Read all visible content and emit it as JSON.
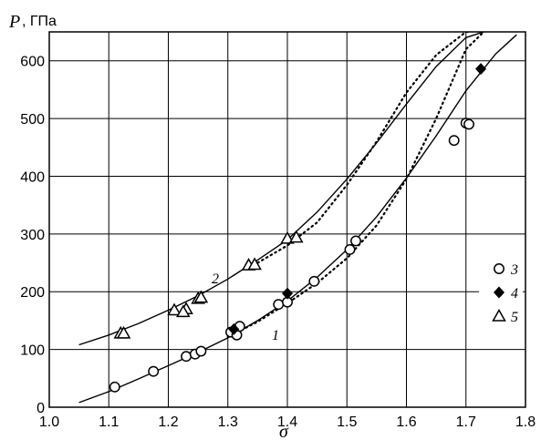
{
  "chart_data": {
    "type": "scatter",
    "xlabel": "σ",
    "ylabel": "P",
    "yunit": ", ГПа",
    "xlim": [
      1.0,
      1.8
    ],
    "ylim": [
      0,
      650
    ],
    "xticks": [
      "1.0",
      "1.1",
      "1.2",
      "1.3",
      "1.4",
      "1.5",
      "1.6",
      "1.7",
      "1.8"
    ],
    "yticks": [
      "0",
      "100",
      "200",
      "300",
      "400",
      "500",
      "600"
    ],
    "grid": true,
    "legend_position": "right",
    "curves": [
      {
        "label": "1",
        "style": "solid",
        "x": [
          1.05,
          1.1,
          1.15,
          1.2,
          1.25,
          1.3,
          1.35,
          1.4,
          1.45,
          1.5,
          1.55,
          1.6,
          1.65,
          1.7,
          1.75,
          1.785
        ],
        "y": [
          8,
          27,
          49,
          72,
          95,
          120,
          150,
          184,
          225,
          273,
          330,
          397,
          470,
          548,
          612,
          645
        ]
      },
      {
        "label": "2",
        "style": "solid",
        "x": [
          1.05,
          1.1,
          1.15,
          1.2,
          1.25,
          1.3,
          1.35,
          1.4,
          1.45,
          1.5,
          1.55,
          1.6,
          1.65,
          1.7,
          1.73
        ],
        "y": [
          108,
          125,
          145,
          168,
          193,
          222,
          255,
          290,
          338,
          395,
          458,
          525,
          590,
          640,
          650
        ]
      },
      {
        "label": "",
        "style": "dotted",
        "x": [
          1.3,
          1.35,
          1.4,
          1.45,
          1.5,
          1.55,
          1.6,
          1.65,
          1.7,
          1.73
        ],
        "y": [
          122,
          148,
          180,
          215,
          258,
          315,
          395,
          500,
          620,
          650
        ]
      },
      {
        "label": "",
        "style": "dotted",
        "x": [
          1.35,
          1.4,
          1.45,
          1.5,
          1.55,
          1.6,
          1.65,
          1.7,
          1.705
        ],
        "y": [
          250,
          280,
          320,
          385,
          460,
          545,
          610,
          650,
          650
        ]
      }
    ],
    "series": [
      {
        "name": "3",
        "marker": "circle",
        "x": [
          1.11,
          1.175,
          1.23,
          1.245,
          1.255,
          1.305,
          1.315,
          1.32,
          1.385,
          1.4,
          1.445,
          1.505,
          1.515,
          1.68,
          1.7,
          1.705
        ],
        "y": [
          35,
          62,
          88,
          92,
          97,
          130,
          125,
          140,
          178,
          182,
          218,
          273,
          288,
          462,
          492,
          490
        ]
      },
      {
        "name": "4",
        "marker": "diamond",
        "x": [
          1.31,
          1.4,
          1.725
        ],
        "y": [
          135,
          197,
          586
        ]
      },
      {
        "name": "5",
        "marker": "triangle",
        "x": [
          1.12,
          1.125,
          1.21,
          1.23,
          1.225,
          1.25,
          1.255,
          1.335,
          1.345,
          1.4,
          1.415
        ],
        "y": [
          128,
          128,
          168,
          170,
          165,
          188,
          190,
          246,
          247,
          292,
          294
        ]
      }
    ]
  }
}
